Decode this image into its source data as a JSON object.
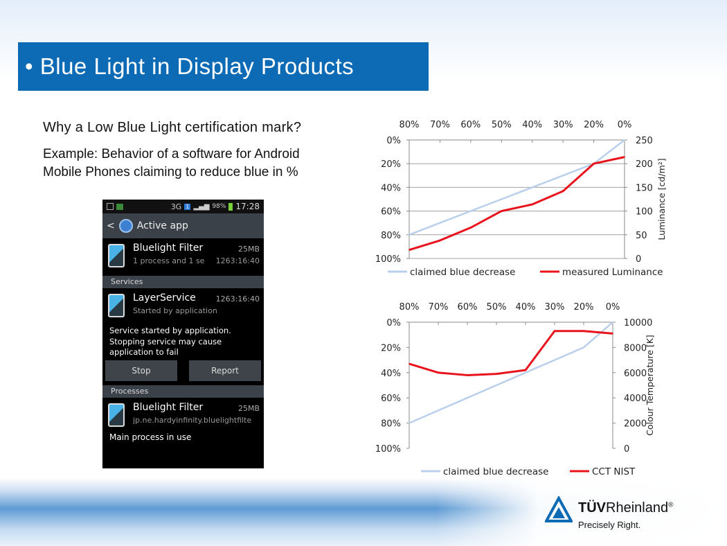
{
  "slide": {
    "title": "• Blue Light in Display Products",
    "question": "Why a Low Blue Light certification mark?",
    "example_line1": "Example: Behavior of a software for Android",
    "example_line2": "Mobile Phones claiming to reduce blue in %"
  },
  "colors": {
    "title_bg": "#0d6ab4",
    "claimed": "#b9cfea",
    "measured": "#e8131c",
    "grid": "#999999"
  },
  "phone": {
    "status_time": "17:28",
    "status_battery": "98%",
    "status_network": "3G",
    "status_badge": "1",
    "actionbar_title": "Active app",
    "app1_name": "Bluelight Filter",
    "app1_size": "25MB",
    "app1_sub": "1 process and 1 se",
    "app1_time": "1263:16:40",
    "services_header": "Services",
    "svc_name": "LayerService",
    "svc_time": "1263:16:40",
    "svc_sub": "Started by application",
    "svc_message_1": "Service started by application.",
    "svc_message_2": "Stopping service may cause",
    "svc_message_3": "application to fail",
    "stop_label": "Stop",
    "report_label": "Report",
    "processes_header": "Processes",
    "proc_name": "Bluelight Filter",
    "proc_size": "25MB",
    "proc_sub": "jp.ne.hardyinfinity.bluelightfilte",
    "proc_status": "Main process in use"
  },
  "chart_data": [
    {
      "type": "line",
      "x_top_ticks": [
        "80%",
        "70%",
        "60%",
        "50%",
        "40%",
        "30%",
        "20%",
        "0%"
      ],
      "y_left_ticks": [
        "0%",
        "20%",
        "40%",
        "60%",
        "80%",
        "100%"
      ],
      "y_right_ticks": [
        "250",
        "200",
        "150",
        "100",
        "50",
        "0"
      ],
      "ylabel_right": "Luminance [cd/m²]",
      "ylim_right": [
        0,
        250
      ],
      "ylim_left": [
        0,
        100
      ],
      "left_axis_inverted": true,
      "grid": true,
      "legend_position": "bottom",
      "series": [
        {
          "name": "claimed blue decrease",
          "axis": "left",
          "values": [
            80,
            70,
            60,
            50,
            40,
            30,
            20,
            0
          ]
        },
        {
          "name": "measured Luminance",
          "axis": "right",
          "values": [
            18,
            38,
            65,
            100,
            114,
            142,
            200,
            214
          ]
        }
      ]
    },
    {
      "type": "line",
      "x_top_ticks": [
        "80%",
        "70%",
        "60%",
        "50%",
        "40%",
        "30%",
        "20%",
        "0%"
      ],
      "y_left_ticks": [
        "0%",
        "20%",
        "40%",
        "60%",
        "80%",
        "100%"
      ],
      "y_right_ticks": [
        "10000",
        "8000",
        "6000",
        "4000",
        "2000",
        "0"
      ],
      "ylabel_right": "Colour Temperature [K]",
      "ylim_right": [
        0,
        10000
      ],
      "ylim_left": [
        0,
        100
      ],
      "left_axis_inverted": true,
      "grid": false,
      "legend_position": "bottom",
      "series": [
        {
          "name": "claimed blue decrease",
          "axis": "left",
          "values": [
            80,
            70,
            60,
            50,
            40,
            30,
            20,
            0
          ]
        },
        {
          "name": "CCT NIST",
          "axis": "right",
          "values": [
            6700,
            6000,
            5800,
            5900,
            6200,
            9300,
            9300,
            9100
          ]
        }
      ]
    }
  ],
  "logo": {
    "brand_bold": "TÜV",
    "brand_rest": "Rheinland",
    "registered": "®",
    "tagline": "Precisely Right."
  }
}
